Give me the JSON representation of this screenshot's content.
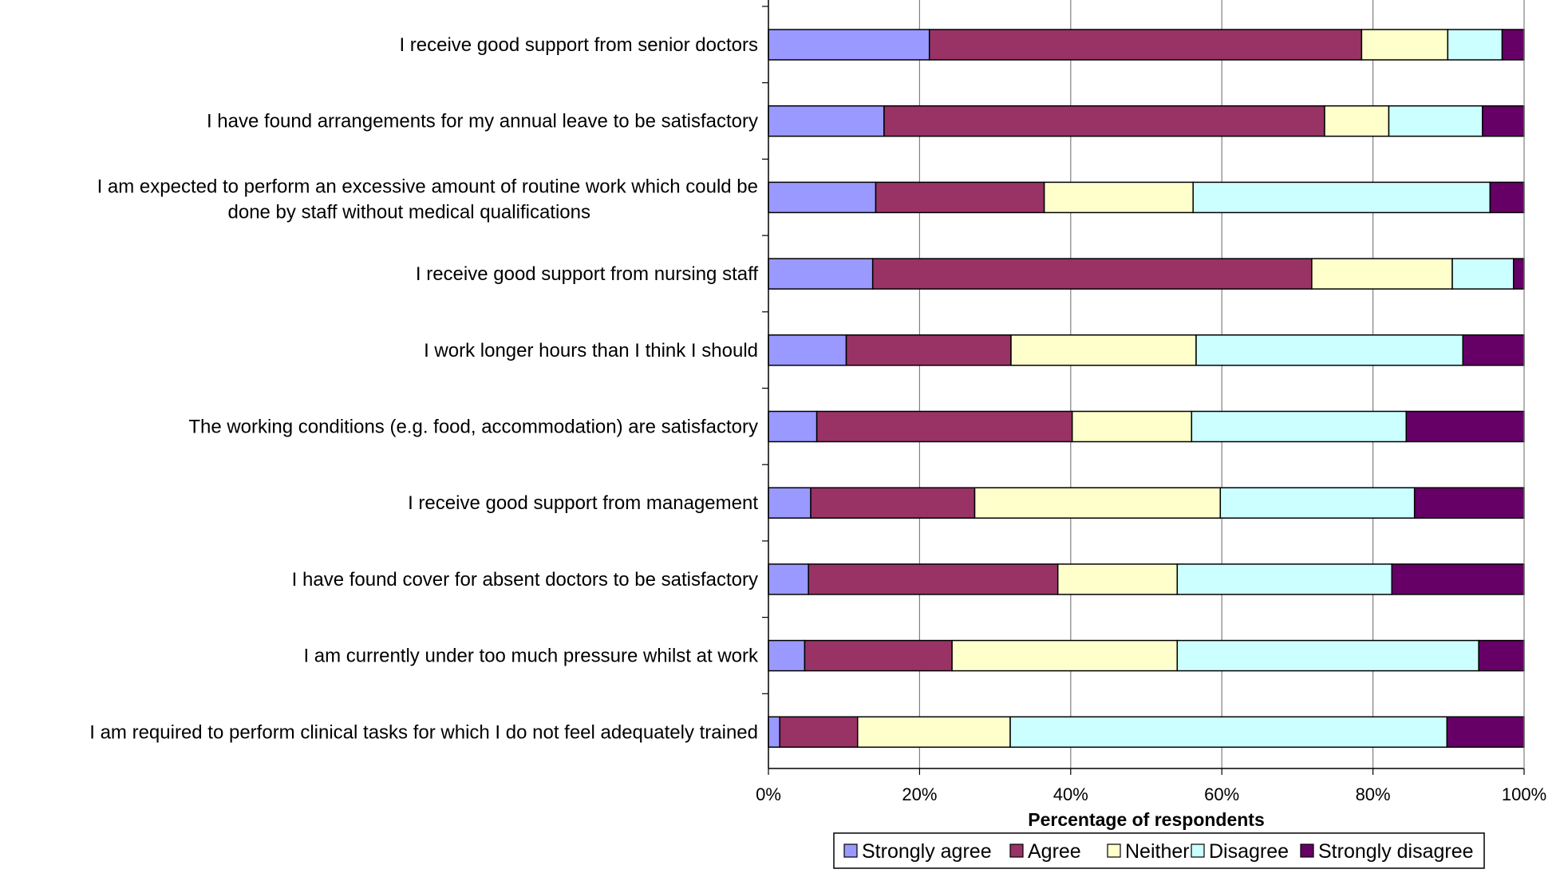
{
  "chart_data": {
    "type": "bar",
    "orientation": "horizontal",
    "stacked": "percent",
    "title": "",
    "xlabel": "Percentage of respondents",
    "ylabel": "",
    "xlim": [
      0,
      100
    ],
    "x_ticks": [
      "0%",
      "20%",
      "40%",
      "60%",
      "80%",
      "100%"
    ],
    "grid": "vertical",
    "legend_position": "bottom",
    "categories": [
      [
        "I receive good support from senior doctors"
      ],
      [
        "I have found arrangements for my annual leave to be satisfactory"
      ],
      [
        "I am expected to perform an excessive amount of routine work which could be",
        "done by staff without medical qualifications"
      ],
      [
        "I receive good support from nursing staff"
      ],
      [
        "I work longer hours than I think I should"
      ],
      [
        "The working conditions (e.g. food, accommodation) are satisfactory"
      ],
      [
        "I receive good support from management"
      ],
      [
        "I have found cover for absent doctors to be satisfactory"
      ],
      [
        "I am currently under too much pressure whilst at work"
      ],
      [
        "I am required to perform clinical tasks for which I do not feel adequately trained"
      ]
    ],
    "series": [
      {
        "name": "Strongly agree",
        "color": "#9999ff",
        "values": [
          21.3,
          15.3,
          14.2,
          13.8,
          10.3,
          6.4,
          5.6,
          5.3,
          4.8,
          1.5
        ]
      },
      {
        "name": "Agree",
        "color": "#993366",
        "values": [
          57.2,
          58.3,
          22.3,
          58.1,
          21.8,
          33.8,
          21.7,
          33.0,
          19.5,
          10.3
        ]
      },
      {
        "name": "Neither",
        "color": "#ffffcc",
        "values": [
          11.4,
          8.5,
          19.7,
          18.6,
          24.5,
          15.8,
          32.5,
          15.8,
          29.8,
          20.2
        ]
      },
      {
        "name": "Disagree",
        "color": "#ccffff",
        "values": [
          7.2,
          12.4,
          39.3,
          8.1,
          35.3,
          28.4,
          25.7,
          28.4,
          39.9,
          57.8
        ]
      },
      {
        "name": "Strongly disagree",
        "color": "#660066",
        "values": [
          2.9,
          5.5,
          4.5,
          1.4,
          8.1,
          15.6,
          14.5,
          17.5,
          6.0,
          10.2
        ]
      }
    ]
  }
}
